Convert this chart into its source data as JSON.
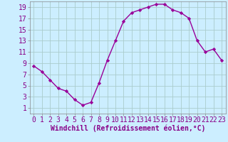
{
  "x": [
    0,
    1,
    2,
    3,
    4,
    5,
    6,
    7,
    8,
    9,
    10,
    11,
    12,
    13,
    14,
    15,
    16,
    17,
    18,
    19,
    20,
    21,
    22,
    23
  ],
  "y": [
    8.5,
    7.5,
    6.0,
    4.5,
    4.0,
    2.5,
    1.5,
    2.0,
    5.5,
    9.5,
    13.0,
    16.5,
    18.0,
    18.5,
    19.0,
    19.5,
    19.5,
    18.5,
    18.0,
    17.0,
    13.0,
    11.0,
    11.5,
    9.5
  ],
  "line_color": "#990099",
  "marker": "D",
  "markersize": 2.2,
  "bg_color": "#cceeff",
  "grid_color": "#aacccc",
  "xlabel": "Windchill (Refroidissement éolien,°C)",
  "ylabel_ticks": [
    1,
    3,
    5,
    7,
    9,
    11,
    13,
    15,
    17,
    19
  ],
  "xtick_labels": [
    "0",
    "1",
    "2",
    "3",
    "4",
    "5",
    "6",
    "7",
    "8",
    "9",
    "10",
    "11",
    "12",
    "13",
    "14",
    "15",
    "16",
    "17",
    "18",
    "19",
    "20",
    "21",
    "22",
    "23"
  ],
  "ylim": [
    0,
    20
  ],
  "xlim": [
    -0.5,
    23.5
  ],
  "xlabel_fontsize": 7,
  "tick_fontsize": 7,
  "axis_label_color": "#880088",
  "tick_color": "#880088",
  "spine_color": "#888888",
  "linewidth": 1.0
}
